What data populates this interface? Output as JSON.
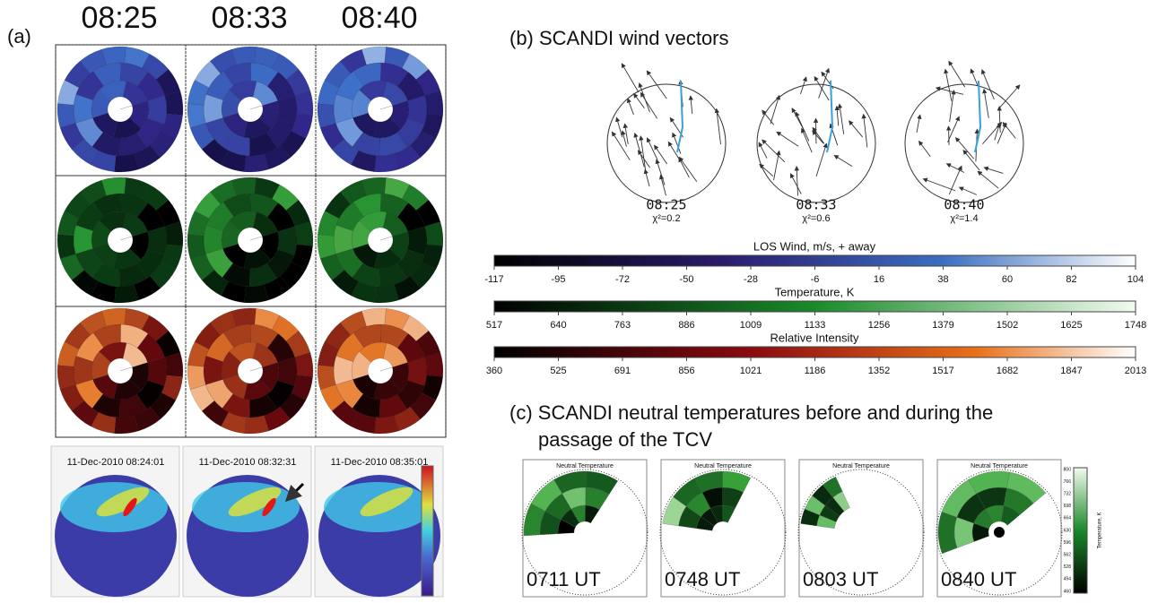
{
  "panel_a": {
    "label": "(a)",
    "times": [
      "08:25",
      "08:33",
      "08:40"
    ],
    "image_timestamps": [
      "11-Dec-2010 08:24:01",
      "11-Dec-2010 08:32:31",
      "11-Dec-2010 08:35:01"
    ]
  },
  "panel_b": {
    "title": "(b) SCANDI wind vectors",
    "plots": [
      {
        "time": "08:25",
        "chi": "χ²=0.2"
      },
      {
        "time": "08:33",
        "chi": "χ²=0.6"
      },
      {
        "time": "08:40",
        "chi": "χ²=1.4"
      }
    ],
    "colorbars": [
      {
        "title": "LOS Wind, m/s, + away",
        "ticks": [
          "-117",
          "-95",
          "-72",
          "-50",
          "-28",
          "-6",
          "16",
          "38",
          "60",
          "82",
          "104"
        ]
      },
      {
        "title": "Temperature, K",
        "ticks": [
          "517",
          "640",
          "763",
          "886",
          "1009",
          "1133",
          "1256",
          "1379",
          "1502",
          "1625",
          "1748"
        ]
      },
      {
        "title": "Relative Intensity",
        "ticks": [
          "360",
          "525",
          "691",
          "856",
          "1021",
          "1186",
          "1352",
          "1517",
          "1682",
          "1847",
          "2013"
        ]
      }
    ]
  },
  "panel_c": {
    "title_lines": [
      "(c) SCANDI neutral temperatures before and during the",
      "passage of the TCV"
    ],
    "plots": [
      {
        "subtitle": "Neutral Temperature",
        "time": "0711 UT"
      },
      {
        "subtitle": "Neutral Temperature",
        "time": "0748 UT"
      },
      {
        "subtitle": "Neutral Temperature",
        "time": "0803 UT"
      },
      {
        "subtitle": "Neutral Temperature",
        "time": "0840 UT"
      }
    ],
    "colorbar": {
      "title": "Temperature, K",
      "ticks": [
        "800",
        "766",
        "732",
        "698",
        "664",
        "630",
        "596",
        "562",
        "528",
        "494",
        "460"
      ]
    }
  }
}
